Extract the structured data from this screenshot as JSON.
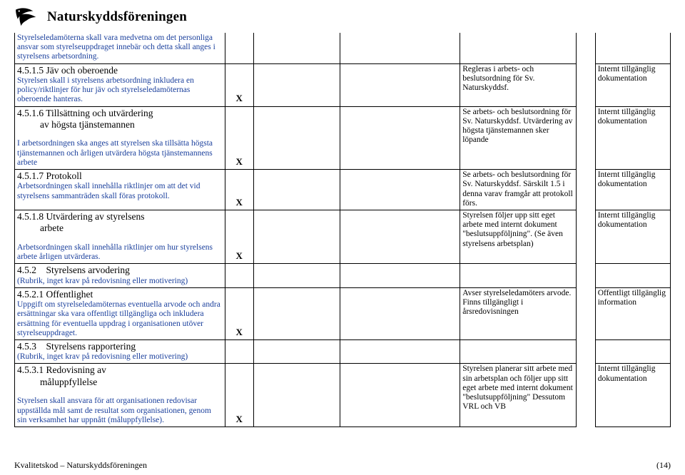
{
  "logo": {
    "text": "Naturskyddsföreningen"
  },
  "rows": [
    {
      "header": "",
      "desc": "Styrelseledamöterna skall vara medvetna om det personliga ansvar som styrelseuppdraget innebär och detta skall anges i styrelsens arbetsordning.",
      "x": "",
      "c3": "",
      "c4": "",
      "c5": "",
      "c7": "",
      "noTop": true
    },
    {
      "header": "4.5.1.5 Jäv och oberoende",
      "desc": "Styrelsen skall i styrelsens arbetsordning inkludera en policy/riktlinjer för hur jäv och styrelseledamöternas oberoende hanteras.",
      "x": "X",
      "c3": "",
      "c4": "",
      "c5": "Regleras i arbets- och beslutsordning för Sv. Naturskyddsf.",
      "c7": "Internt tillgänglig dokumentation"
    },
    {
      "header": "4.5.1.6 Tillsättning och utvärdering",
      "indent": "av högsta tjänstemannen",
      "desc": "I arbetsordningen ska anges att styrelsen ska tillsätta högsta tjänstemannen och årligen utvärdera högsta tjänstemannens arbete",
      "x": "X",
      "c3": "",
      "c4": "",
      "c5": "Se arbets- och beslutsordning för Sv. Naturskyddsf. Utvärdering av högsta tjänstemannen sker löpande",
      "c7": "Internt tillgänglig dokumentation"
    },
    {
      "header": "4.5.1.7 Protokoll",
      "desc": "Arbetsordningen skall innehålla riktlinjer om att det vid styrelsens sammanträden skall föras protokoll.",
      "x": "X",
      "c3": "",
      "c4": "",
      "c5": "Se arbets- och beslutsordning för Sv. Naturskyddsf. Särskilt 1.5 i denna varav framgår att protokoll förs.",
      "c7": "Internt tillgänglig dokumentation"
    },
    {
      "header": "4.5.1.8 Utvärdering av styrelsens",
      "indent": "arbete",
      "desc": "Arbetsordningen skall innehålla riktlinjer om hur styrelsens arbete årligen utvärderas.",
      "x": "X",
      "c3": "",
      "c4": "",
      "c5": "Styrelsen följer upp sitt eget arbete med internt dokument \"beslutsuppföljning\". (Se även styrelsens arbetsplan)",
      "c7": "Internt tillgänglig dokumentation"
    },
    {
      "header": "4.5.2 Styrelsens arvodering",
      "desc": "(Rubrik, inget krav på redovisning eller motivering)",
      "x": "",
      "c3": "",
      "c4": "",
      "c5": "",
      "c7": ""
    },
    {
      "header": "4.5.2.1 Offentlighet",
      "desc": "Uppgift om styrelseledamöternas eventuella arvode och andra ersättningar ska vara offentligt tillgängliga och inkludera ersättning för eventuella uppdrag i organisationen utöver styrelseuppdraget.",
      "x": "X",
      "c3": "",
      "c4": "",
      "c5": "Avser styrelseledamöters arvode. Finns tillgängligt i årsredovisningen",
      "c7": "Offentligt tillgänglig information"
    },
    {
      "header": "4.5.3 Styrelsens rapportering",
      "desc": "(Rubrik, inget krav på redovisning eller motivering)",
      "x": "",
      "c3": "",
      "c4": "",
      "c5": "",
      "c7": ""
    },
    {
      "header": "4.5.3.1 Redovisning av",
      "indent": "måluppfyllelse",
      "desc": "Styrelsen skall ansvara för att organisationen redovisar uppställda mål samt de resultat som organisationen, genom sin verksamhet har uppnått (måluppfyllelse).",
      "x": "X",
      "c3": "",
      "c4": "",
      "c5": "Styrelsen planerar sitt arbete med sin arbetsplan och följer upp sitt eget arbete med internt dokument \"beslutsuppföljning\" Dessutom VRL och VB",
      "c7": "Internt tillgänglig dokumentation"
    }
  ],
  "footer": {
    "left": "Kvalitetskod – Naturskyddsföreningen",
    "page": "(14)"
  },
  "colors": {
    "link": "#1a3f9c",
    "text": "#000000",
    "bg": "#ffffff"
  }
}
